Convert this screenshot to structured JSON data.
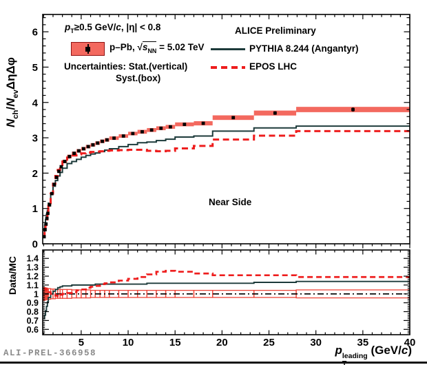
{
  "labels": {
    "cuts": [
      [
        "i",
        "p"
      ],
      [
        "sub",
        "T"
      ],
      [
        "n",
        "≥0.5 GeV/"
      ],
      [
        "i",
        "c"
      ],
      [
        "n",
        ", |η| < 0.8"
      ]
    ],
    "system": [
      [
        "n",
        "p–Pb, "
      ],
      [
        "n",
        "√"
      ],
      [
        "ol",
        "s|NN"
      ],
      [
        "n",
        " = 5.02 TeV"
      ]
    ],
    "unc1": [
      [
        "n",
        "Uncertainties: Stat.(vertical)"
      ]
    ],
    "unc2": [
      [
        "n",
        "Syst.(box)"
      ]
    ],
    "alice": [
      [
        "n",
        "ALICE Preliminary"
      ]
    ],
    "pythia_label": [
      [
        "n",
        "PYTHIA 8.244 (Angantyr)"
      ]
    ],
    "epos_label": [
      [
        "n",
        "EPOS LHC"
      ]
    ],
    "near_side": [
      [
        "n",
        "Near Side"
      ]
    ],
    "ylabel_main": [
      [
        "i",
        "N"
      ],
      [
        "sub",
        "ch"
      ],
      [
        "n",
        "/"
      ],
      [
        "i",
        "N"
      ],
      [
        "sub",
        "ev"
      ],
      [
        "n",
        "ΔηΔφ"
      ]
    ],
    "ylabel_ratio": [
      [
        "n",
        "Data/MC"
      ]
    ],
    "xlabel": [
      [
        "i",
        "p"
      ],
      [
        "stack",
        "leading|T"
      ],
      [
        "n",
        " (GeV/"
      ],
      [
        "i",
        "c"
      ],
      [
        "n",
        ")"
      ]
    ],
    "watermark": "ALI-PREL-366958"
  },
  "colors": {
    "data_syst_fill": "#f3695f",
    "data_marker": "#000000",
    "legend_box_border": "#8f1010",
    "pythia_line": "#1c3a3a",
    "epos_line": "#ee1d1d",
    "ratio_box_stroke": "#ee4438",
    "frame": "#000000",
    "unity_line": "#000000"
  },
  "chart_data": {
    "type": "step-histogram-with-ratio",
    "title": "",
    "annotation": "Near Side",
    "x_axis": {
      "label": "pT^leading (GeV/c)",
      "min": 0.9,
      "max": 40,
      "major_values": [
        5,
        10,
        15,
        20,
        25,
        30,
        35,
        40
      ],
      "major_ticks": [
        "5",
        "10",
        "15",
        "20",
        "25",
        "30",
        "35",
        "40"
      ],
      "minor_step": 1
    },
    "main_y_axis": {
      "label": "Nch/Nev ΔηΔφ",
      "min": 0,
      "max": 6.49,
      "major_values": [
        0,
        1,
        2,
        3,
        4,
        5,
        6
      ],
      "major_ticks": [
        "0",
        "1",
        "2",
        "3",
        "4",
        "5",
        "6"
      ],
      "minor_step": 0.2
    },
    "ratio_y_axis": {
      "label": "Data/MC",
      "min": 0.54,
      "max": 1.495,
      "major_values": [
        0.6,
        0.7,
        0.8,
        0.9,
        1,
        1.1,
        1.2,
        1.3,
        1.4
      ],
      "major_ticks": [
        "0.6",
        "0.7",
        "0.8",
        "0.9",
        "1",
        "1.1",
        "1.2",
        "1.3",
        "1.4"
      ],
      "minor_step": 0.02
    },
    "bin_edges": [
      1.0,
      1.1,
      1.2,
      1.3,
      1.4,
      1.5,
      1.75,
      2.0,
      2.25,
      2.5,
      2.75,
      3.0,
      3.5,
      4.0,
      4.5,
      5.0,
      5.5,
      6.0,
      6.5,
      7.0,
      7.5,
      8.0,
      9.0,
      10.0,
      11.0,
      12.0,
      13.0,
      14.0,
      15.0,
      17.0,
      19.0,
      23.4,
      27.9,
      40.0
    ],
    "series": {
      "data": {
        "name": "p–Pb, √sNN = 5.02 TeV",
        "values": [
          0.2,
          0.4,
          0.56,
          0.72,
          0.86,
          1.1,
          1.42,
          1.68,
          1.88,
          2.05,
          2.18,
          2.33,
          2.47,
          2.56,
          2.63,
          2.69,
          2.75,
          2.8,
          2.85,
          2.9,
          2.94,
          2.99,
          3.05,
          3.12,
          3.17,
          3.22,
          3.27,
          3.31,
          3.38,
          3.41,
          3.57,
          3.7,
          3.8
        ],
        "syst": [
          0.03,
          0.03,
          0.03,
          0.035,
          0.035,
          0.04,
          0.04,
          0.045,
          0.045,
          0.045,
          0.045,
          0.05,
          0.05,
          0.05,
          0.05,
          0.05,
          0.05,
          0.05,
          0.05,
          0.05,
          0.05,
          0.05,
          0.05,
          0.05,
          0.055,
          0.055,
          0.055,
          0.055,
          0.055,
          0.06,
          0.065,
          0.07,
          0.075
        ],
        "stat": [
          0.02,
          0.02,
          0.02,
          0.02,
          0.02,
          0.02,
          0.02,
          0.02,
          0.02,
          0.02,
          0.02,
          0.02,
          0.02,
          0.02,
          0.02,
          0.02,
          0.02,
          0.02,
          0.02,
          0.02,
          0.02,
          0.02,
          0.02,
          0.02,
          0.02,
          0.02,
          0.02,
          0.02,
          0.02,
          0.03,
          0.04,
          0.05,
          0.06
        ]
      },
      "pythia": {
        "name": "PYTHIA 8.244 (Angantyr)",
        "values": [
          0.29,
          0.53,
          0.69,
          0.84,
          0.95,
          1.15,
          1.42,
          1.63,
          1.79,
          1.92,
          2.02,
          2.14,
          2.27,
          2.33,
          2.39,
          2.45,
          2.5,
          2.54,
          2.57,
          2.61,
          2.65,
          2.69,
          2.75,
          2.81,
          2.86,
          2.88,
          2.92,
          2.96,
          3.02,
          3.05,
          3.19,
          3.28,
          3.33
        ]
      },
      "epos": {
        "name": "EPOS LHC",
        "values": [
          0.19,
          0.38,
          0.53,
          0.69,
          0.83,
          1.08,
          1.42,
          1.7,
          1.92,
          2.09,
          2.2,
          2.33,
          2.44,
          2.5,
          2.53,
          2.56,
          2.58,
          2.6,
          2.61,
          2.62,
          2.63,
          2.64,
          2.65,
          2.66,
          2.66,
          2.63,
          2.62,
          2.63,
          2.7,
          2.77,
          2.95,
          3.06,
          3.19
        ]
      }
    },
    "ratio": {
      "unity": 1,
      "pythia": [
        0.72,
        0.76,
        0.81,
        0.86,
        0.91,
        0.96,
        1.0,
        1.03,
        1.05,
        1.07,
        1.08,
        1.09,
        1.09,
        1.1,
        1.1,
        1.1,
        1.1,
        1.1,
        1.11,
        1.11,
        1.11,
        1.11,
        1.11,
        1.11,
        1.11,
        1.12,
        1.12,
        1.12,
        1.12,
        1.12,
        1.12,
        1.13,
        1.14
      ],
      "epos": [
        1.05,
        1.05,
        1.06,
        1.04,
        1.04,
        1.02,
        1.0,
        0.99,
        0.98,
        0.97,
        0.99,
        1.0,
        1.01,
        1.02,
        1.04,
        1.05,
        1.07,
        1.08,
        1.09,
        1.11,
        1.12,
        1.13,
        1.15,
        1.17,
        1.19,
        1.22,
        1.25,
        1.26,
        1.25,
        1.23,
        1.21,
        1.21,
        1.19
      ],
      "syst_half": [
        0.07,
        0.07,
        0.065,
        0.065,
        0.06,
        0.06,
        0.055,
        0.055,
        0.05,
        0.05,
        0.05,
        0.05,
        0.05,
        0.045,
        0.045,
        0.045,
        0.045,
        0.04,
        0.04,
        0.04,
        0.04,
        0.04,
        0.04,
        0.04,
        0.04,
        0.04,
        0.04,
        0.04,
        0.04,
        0.04,
        0.04,
        0.04,
        0.045
      ]
    }
  }
}
